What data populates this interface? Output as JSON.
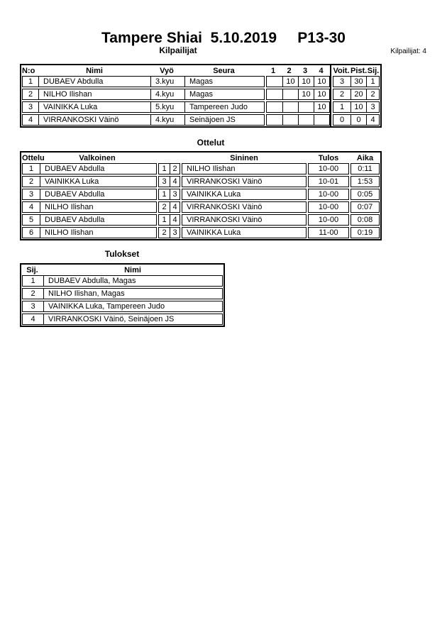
{
  "page": {
    "title": "Tampere Shiai  5.10.2019     P13-30",
    "competitors_count_label": "Kilpailijat: 4"
  },
  "competitors": {
    "section_title": "Kilpailijat",
    "headers": {
      "no": "N:o",
      "name": "Nimi",
      "belt": "Vyö",
      "club": "Seura",
      "rounds": [
        "1",
        "2",
        "3",
        "4"
      ],
      "wins": "Voit.",
      "points": "Pist.",
      "place": "Sij."
    },
    "rows": [
      {
        "no": "1",
        "name": "DUBAEV Abdulla",
        "belt": "3.kyu",
        "club": "Magas",
        "rounds": [
          "",
          "10",
          "10",
          "10"
        ],
        "wins": "3",
        "points": "30",
        "place": "1"
      },
      {
        "no": "2",
        "name": "NILHO Ilishan",
        "belt": "4.kyu",
        "club": "Magas",
        "rounds": [
          "",
          "",
          "10",
          "10"
        ],
        "wins": "2",
        "points": "20",
        "place": "2"
      },
      {
        "no": "3",
        "name": "VAINIKKA Luka",
        "belt": "5.kyu",
        "club": "Tampereen Judo",
        "rounds": [
          "",
          "",
          "",
          "10"
        ],
        "wins": "1",
        "points": "10",
        "place": "3"
      },
      {
        "no": "4",
        "name": "VIRRANKOSKI Väinö",
        "belt": "4.kyu",
        "club": "Seinäjoen JS",
        "rounds": [
          "",
          "",
          "",
          ""
        ],
        "wins": "0",
        "points": "0",
        "place": "4"
      }
    ]
  },
  "matches": {
    "section_title": "Ottelut",
    "headers": {
      "match": "Ottelu",
      "white": "Valkoinen",
      "blue": "Sininen",
      "result": "Tulos",
      "time": "Aika"
    },
    "rows": [
      {
        "match": "1",
        "white": "DUBAEV Abdulla",
        "white_no": "1",
        "blue_no": "2",
        "blue": "NILHO Ilishan",
        "result": "10-00",
        "time": "0:11"
      },
      {
        "match": "2",
        "white": "VAINIKKA Luka",
        "white_no": "3",
        "blue_no": "4",
        "blue": "VIRRANKOSKI Väinö",
        "result": "10-01",
        "time": "1:53"
      },
      {
        "match": "3",
        "white": "DUBAEV Abdulla",
        "white_no": "1",
        "blue_no": "3",
        "blue": "VAINIKKA Luka",
        "result": "10-00",
        "time": "0:05"
      },
      {
        "match": "4",
        "white": "NILHO Ilishan",
        "white_no": "2",
        "blue_no": "4",
        "blue": "VIRRANKOSKI Väinö",
        "result": "10-00",
        "time": "0:07"
      },
      {
        "match": "5",
        "white": "DUBAEV Abdulla",
        "white_no": "1",
        "blue_no": "4",
        "blue": "VIRRANKOSKI Väinö",
        "result": "10-00",
        "time": "0:08"
      },
      {
        "match": "6",
        "white": "NILHO Ilishan",
        "white_no": "2",
        "blue_no": "3",
        "blue": "VAINIKKA Luka",
        "result": "11-00",
        "time": "0:19"
      }
    ]
  },
  "results": {
    "section_title": "Tulokset",
    "headers": {
      "place": "Sij.",
      "name": "Nimi"
    },
    "rows": [
      {
        "place": "1",
        "name": "DUBAEV Abdulla, Magas"
      },
      {
        "place": "2",
        "name": "NILHO Ilishan, Magas"
      },
      {
        "place": "3",
        "name": "VAINIKKA Luka, Tampereen Judo"
      },
      {
        "place": "4",
        "name": "VIRRANKOSKI Väinö, Seinäjoen JS"
      }
    ]
  },
  "colors": {
    "ink": "#000000",
    "paper": "#ffffff"
  }
}
